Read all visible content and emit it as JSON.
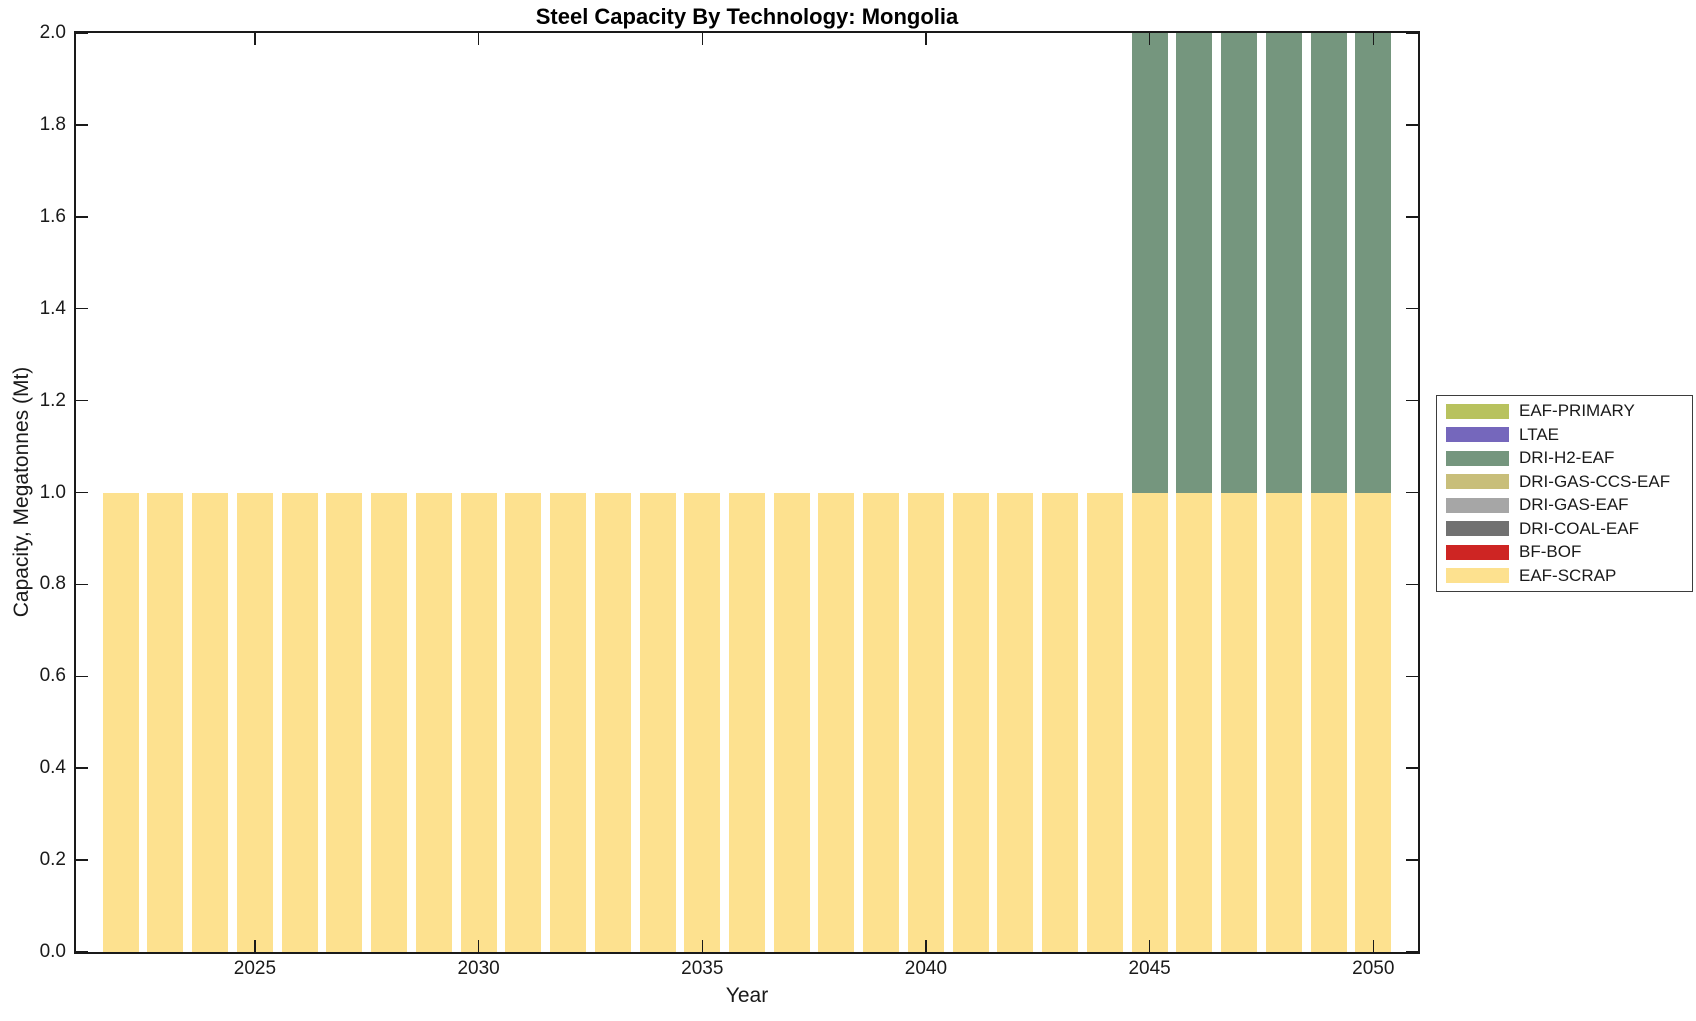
{
  "title": "Steel Capacity By Technology: Mongolia",
  "axes": {
    "xlabel": "Year",
    "ylabel": "Capacity, Megatonnes (Mt)",
    "xlim": [
      2021,
      2051
    ],
    "ylim": [
      0,
      2
    ],
    "x_ticks": [
      "2025",
      "2030",
      "2035",
      "2040",
      "2045",
      "2050"
    ],
    "y_ticks": [
      "0.0",
      "0.2",
      "0.4",
      "0.6",
      "0.8",
      "1.0",
      "1.2",
      "1.4",
      "1.6",
      "1.8",
      "2.0"
    ],
    "grid": false,
    "box": true,
    "tick_direction": "in"
  },
  "legend": {
    "position": "outside-right-center",
    "items": [
      {
        "label": "EAF-PRIMARY",
        "color": "#B8C25E"
      },
      {
        "label": "LTAE",
        "color": "#7567BC"
      },
      {
        "label": "DRI-H2-EAF",
        "color": "#75967E"
      },
      {
        "label": "DRI-GAS-CCS-EAF",
        "color": "#C8BE7A"
      },
      {
        "label": "DRI-GAS-EAF",
        "color": "#A6A6A6"
      },
      {
        "label": "DRI-COAL-EAF",
        "color": "#717171"
      },
      {
        "label": "BF-BOF",
        "color": "#CE2523"
      },
      {
        "label": "EAF-SCRAP",
        "color": "#FDE18F"
      }
    ]
  },
  "chart_data": {
    "type": "bar",
    "stacked": true,
    "title": "Steel Capacity By Technology: Mongolia",
    "xlabel": "Year",
    "ylabel": "Capacity, Megatonnes (Mt)",
    "xlim": [
      2021,
      2051
    ],
    "ylim": [
      0,
      2
    ],
    "legend_position": "outside-right-center",
    "categories": [
      2022,
      2023,
      2024,
      2025,
      2026,
      2027,
      2028,
      2029,
      2030,
      2031,
      2032,
      2033,
      2034,
      2035,
      2036,
      2037,
      2038,
      2039,
      2040,
      2041,
      2042,
      2043,
      2044,
      2045,
      2046,
      2047,
      2048,
      2049,
      2050
    ],
    "series": [
      {
        "name": "EAF-SCRAP",
        "color": "#FDE18F",
        "values": [
          1.0,
          1.0,
          1.0,
          1.0,
          1.0,
          1.0,
          1.0,
          1.0,
          1.0,
          1.0,
          1.0,
          1.0,
          1.0,
          1.0,
          1.0,
          1.0,
          1.0,
          1.0,
          1.0,
          1.0,
          1.0,
          1.0,
          1.0,
          1.0,
          1.0,
          1.0,
          1.0,
          1.0,
          1.0
        ]
      },
      {
        "name": "DRI-H2-EAF",
        "color": "#75967E",
        "values": [
          0,
          0,
          0,
          0,
          0,
          0,
          0,
          0,
          0,
          0,
          0,
          0,
          0,
          0,
          0,
          0,
          0,
          0,
          0,
          0,
          0,
          0,
          0,
          1.0,
          1.0,
          1.0,
          1.0,
          1.0,
          1.0
        ]
      }
    ],
    "unused_legend_series": [
      "EAF-PRIMARY",
      "LTAE",
      "DRI-GAS-CCS-EAF",
      "DRI-GAS-EAF",
      "DRI-COAL-EAF",
      "BF-BOF"
    ]
  }
}
